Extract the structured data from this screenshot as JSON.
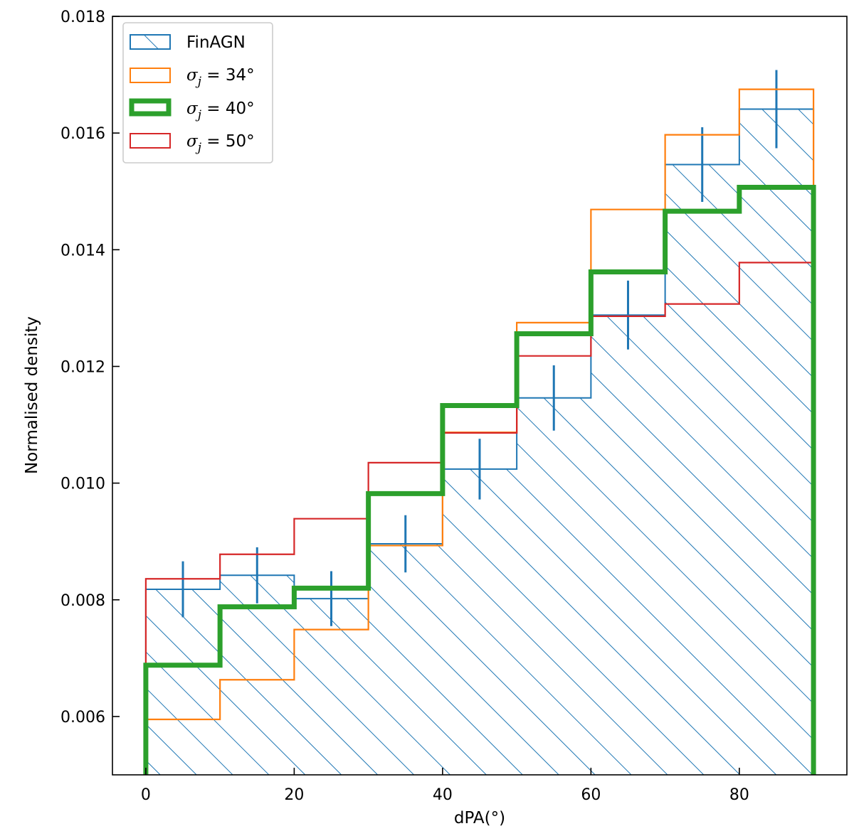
{
  "chart_data": {
    "type": "histogram",
    "xlabel": "dPA(°)",
    "ylabel": "Normalised density",
    "xlim": [
      -4.5,
      94.5
    ],
    "ylim": [
      0.005,
      0.018
    ],
    "xticks": [
      0,
      20,
      40,
      60,
      80
    ],
    "xtick_labels": [
      "0",
      "20",
      "40",
      "60",
      "80"
    ],
    "yticks": [
      0.006,
      0.008,
      0.01,
      0.012,
      0.014,
      0.016,
      0.018
    ],
    "ytick_labels": [
      "0.006",
      "0.008",
      "0.010",
      "0.012",
      "0.014",
      "0.016",
      "0.018"
    ],
    "grid": false,
    "legend_position": "top-left",
    "bin_edges": [
      0,
      10,
      20,
      30,
      40,
      50,
      60,
      70,
      80,
      90
    ],
    "series": [
      {
        "name": "FinAGN",
        "style": "hatched",
        "color": "#1f77b4",
        "values": [
          0.00818,
          0.00842,
          0.00802,
          0.00896,
          0.01024,
          0.01146,
          0.01288,
          0.01546,
          0.01641
        ],
        "errors": [
          0.00048,
          0.00048,
          0.00047,
          0.00049,
          0.00052,
          0.00056,
          0.00059,
          0.00064,
          0.00067
        ]
      },
      {
        "name": "σ_j = 34°",
        "style": "step",
        "color": "#ff7f0e",
        "values": [
          0.00595,
          0.00663,
          0.00749,
          0.00893,
          0.01087,
          0.01275,
          0.01469,
          0.01597,
          0.01675
        ]
      },
      {
        "name": "σ_j = 40°",
        "style": "step-thick",
        "color": "#2ca02c",
        "values": [
          0.00688,
          0.00788,
          0.0082,
          0.00982,
          0.01133,
          0.01256,
          0.01362,
          0.01466,
          0.01507
        ]
      },
      {
        "name": "σ_j = 50°",
        "style": "step",
        "color": "#d62728",
        "values": [
          0.00836,
          0.00878,
          0.00939,
          0.01035,
          0.01086,
          0.01218,
          0.01286,
          0.01307,
          0.01378
        ]
      }
    ]
  },
  "legend": {
    "finagn": "FinAGN",
    "sigma_symbol": "σ",
    "sigma_sub": "j",
    "sigma_34": " = 34°",
    "sigma_40": " = 40°",
    "sigma_50": " = 50°"
  }
}
